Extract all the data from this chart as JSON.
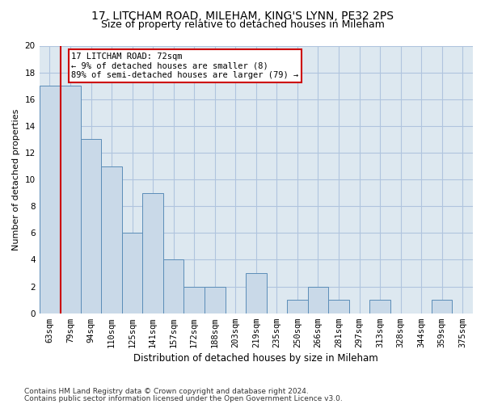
{
  "title1": "17, LITCHAM ROAD, MILEHAM, KING'S LYNN, PE32 2PS",
  "title2": "Size of property relative to detached houses in Mileham",
  "xlabel": "Distribution of detached houses by size in Mileham",
  "ylabel": "Number of detached properties",
  "categories": [
    "63sqm",
    "79sqm",
    "94sqm",
    "110sqm",
    "125sqm",
    "141sqm",
    "157sqm",
    "172sqm",
    "188sqm",
    "203sqm",
    "219sqm",
    "235sqm",
    "250sqm",
    "266sqm",
    "281sqm",
    "297sqm",
    "313sqm",
    "328sqm",
    "344sqm",
    "359sqm",
    "375sqm"
  ],
  "values": [
    17,
    17,
    13,
    11,
    6,
    9,
    4,
    2,
    2,
    0,
    3,
    0,
    1,
    2,
    1,
    0,
    1,
    0,
    0,
    1,
    0
  ],
  "bar_color": "#c9d9e8",
  "bar_edge_color": "#5b8db8",
  "grid_color": "#b0c4de",
  "background_color": "#dde8f0",
  "annotation_text": "17 LITCHAM ROAD: 72sqm\n← 9% of detached houses are smaller (8)\n89% of semi-detached houses are larger (79) →",
  "annotation_box_color": "#ffffff",
  "annotation_border_color": "#cc0000",
  "property_line_color": "#cc0000",
  "ylim": [
    0,
    20
  ],
  "yticks": [
    0,
    2,
    4,
    6,
    8,
    10,
    12,
    14,
    16,
    18,
    20
  ],
  "footer1": "Contains HM Land Registry data © Crown copyright and database right 2024.",
  "footer2": "Contains public sector information licensed under the Open Government Licence v3.0.",
  "title1_fontsize": 10,
  "title2_fontsize": 9,
  "xlabel_fontsize": 8.5,
  "ylabel_fontsize": 8,
  "tick_fontsize": 7.5,
  "footer_fontsize": 6.5,
  "annotation_fontsize": 7.5
}
